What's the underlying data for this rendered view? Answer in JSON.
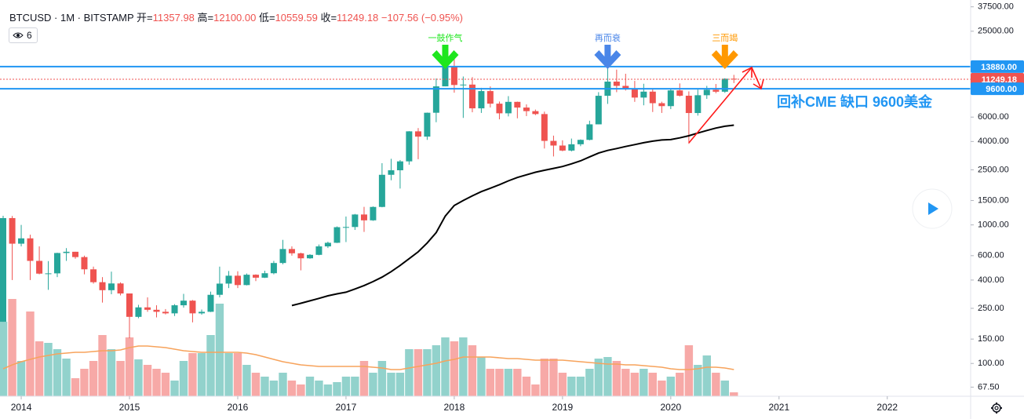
{
  "chart_data": {
    "type": "candlestick",
    "title": "BTCUSD · 1M · BITSTAMP",
    "ohlc": [
      {
        "label": "开=",
        "value": "11357.98"
      },
      {
        "label": "高=",
        "value": "12100.00"
      },
      {
        "label": "低=",
        "value": "10559.59"
      },
      {
        "label": "收=",
        "value": "11249.18"
      },
      {
        "label": "",
        "value": "−107.56 (−0.95%)"
      }
    ],
    "indicator_count": "6",
    "log_scale": true,
    "grid": false,
    "up_color": "#26a69a",
    "down_color": "#ef5350",
    "xlim": [
      2013.804,
      2022.77
    ],
    "xticks": [
      2014,
      2015,
      2016,
      2017,
      2018,
      2019,
      2020,
      2021,
      2022
    ],
    "ylim": [
      58,
      42000
    ],
    "yticks": [
      {
        "value": 37500,
        "label": "37500.00"
      },
      {
        "value": 25000,
        "label": "25000.00"
      },
      {
        "value": 6000,
        "label": "6000.00"
      },
      {
        "value": 4000,
        "label": "4000.00"
      },
      {
        "value": 2500,
        "label": "2500.00"
      },
      {
        "value": 1500,
        "label": "1500.00"
      },
      {
        "value": 1000,
        "label": "1000.00"
      },
      {
        "value": 600,
        "label": "600.00"
      },
      {
        "value": 400,
        "label": "400.00"
      },
      {
        "value": 250,
        "label": "250.00"
      },
      {
        "value": 150,
        "label": "150.00"
      },
      {
        "value": 100,
        "label": "100.00"
      },
      {
        "value": 67.5,
        "label": "67.50"
      }
    ],
    "x": [
      2013.833,
      2013.917,
      2014,
      2014.083,
      2014.167,
      2014.25,
      2014.333,
      2014.417,
      2014.5,
      2014.583,
      2014.667,
      2014.75,
      2014.833,
      2014.917,
      2015,
      2015.083,
      2015.167,
      2015.25,
      2015.333,
      2015.417,
      2015.5,
      2015.583,
      2015.667,
      2015.75,
      2015.833,
      2015.917,
      2016,
      2016.083,
      2016.167,
      2016.25,
      2016.333,
      2016.417,
      2016.5,
      2016.583,
      2016.667,
      2016.75,
      2016.833,
      2016.917,
      2017,
      2017.083,
      2017.167,
      2017.25,
      2017.333,
      2017.417,
      2017.5,
      2017.583,
      2017.667,
      2017.75,
      2017.833,
      2017.917,
      2018,
      2018.083,
      2018.167,
      2018.25,
      2018.333,
      2018.417,
      2018.5,
      2018.583,
      2018.667,
      2018.75,
      2018.833,
      2018.917,
      2019,
      2019.083,
      2019.167,
      2019.25,
      2019.333,
      2019.417,
      2019.5,
      2019.583,
      2019.667,
      2019.75,
      2019.833,
      2019.917,
      2020,
      2020.083,
      2020.167,
      2020.25,
      2020.333,
      2020.417,
      2020.5,
      2020.583
    ],
    "open": [
      200,
      1120,
      732,
      800,
      550,
      445,
      447,
      627,
      640,
      586,
      478,
      386,
      338,
      378,
      320,
      217,
      254,
      244,
      236,
      230,
      263,
      284,
      230,
      236,
      313,
      377,
      430,
      368,
      437,
      416,
      448,
      531,
      670,
      624,
      574,
      608,
      700,
      743,
      963,
      966,
      1189,
      1079,
      1348,
      2300,
      2480,
      2875,
      4735,
      4338,
      6450,
      10000,
      13860,
      10230,
      10300,
      6940,
      9245,
      7500,
      6390,
      7730,
      7030,
      6625,
      6310,
      4040,
      3740,
      3440,
      3820,
      4110,
      5320,
      8550,
      10820,
      10080,
      9600,
      8300,
      9160,
      7560,
      7200,
      9350,
      8560,
      6420,
      8630,
      9450,
      9150,
      11357.98
    ],
    "high": [
      1163,
      1160,
      1000,
      850,
      700,
      548,
      630,
      680,
      640,
      600,
      500,
      420,
      460,
      385,
      320,
      265,
      300,
      263,
      247,
      268,
      318,
      287,
      245,
      330,
      500,
      465,
      463,
      446,
      440,
      467,
      550,
      780,
      700,
      630,
      615,
      722,
      757,
      975,
      1150,
      1200,
      1350,
      1360,
      2790,
      3000,
      2940,
      4750,
      5000,
      6470,
      11400,
      19666,
      17200,
      11780,
      11660,
      9760,
      9990,
      7770,
      8500,
      7760,
      7410,
      6800,
      6570,
      4410,
      4080,
      4200,
      4140,
      5650,
      9080,
      13880,
      13200,
      12330,
      10950,
      10440,
      9510,
      7750,
      9570,
      10500,
      9200,
      9480,
      10080,
      10400,
      11440,
      12100
    ],
    "low": [
      200,
      400,
      700,
      400,
      440,
      340,
      420,
      550,
      570,
      440,
      377,
      275,
      316,
      310,
      152,
      212,
      236,
      215,
      226,
      220,
      253,
      198,
      225,
      235,
      300,
      350,
      350,
      366,
      393,
      414,
      440,
      520,
      600,
      470,
      570,
      604,
      681,
      740,
      752,
      920,
      890,
      1070,
      1340,
      2100,
      1830,
      2720,
      2980,
      4110,
      5510,
      10000,
      9000,
      5920,
      6500,
      6430,
      7040,
      5780,
      6070,
      5880,
      6100,
      6200,
      3560,
      3120,
      3400,
      3390,
      3700,
      4080,
      5320,
      7470,
      9080,
      9330,
      7730,
      7300,
      6530,
      6430,
      6850,
      8450,
      3850,
      6150,
      8120,
      8920,
      8980,
      10559.59
    ],
    "close": [
      1120,
      732,
      800,
      550,
      445,
      447,
      627,
      640,
      586,
      478,
      386,
      338,
      378,
      320,
      217,
      254,
      244,
      236,
      230,
      263,
      284,
      230,
      236,
      313,
      377,
      430,
      368,
      437,
      416,
      448,
      531,
      670,
      624,
      574,
      608,
      700,
      743,
      963,
      966,
      1189,
      1079,
      1348,
      2300,
      2480,
      2875,
      4735,
      4338,
      6450,
      10000,
      13860,
      10230,
      10300,
      6940,
      9245,
      7500,
      6390,
      7730,
      7030,
      6625,
      6310,
      4040,
      3740,
      3440,
      3820,
      4110,
      5320,
      8550,
      10820,
      10080,
      9600,
      8300,
      9160,
      7560,
      7200,
      9350,
      8560,
      6420,
      8630,
      9450,
      9150,
      11360,
      11249.18
    ],
    "volume_lim": [
      0,
      505
    ],
    "volume": [
      95,
      124,
      45,
      108,
      70,
      68,
      60,
      48,
      23,
      35,
      45,
      78,
      60,
      45,
      75,
      47,
      40,
      35,
      30,
      20,
      45,
      55,
      55,
      78,
      118,
      55,
      55,
      40,
      30,
      25,
      20,
      30,
      20,
      15,
      25,
      20,
      15,
      18,
      25,
      25,
      45,
      30,
      45,
      30,
      30,
      60,
      60,
      60,
      65,
      75,
      70,
      75,
      65,
      50,
      35,
      35,
      35,
      35,
      25,
      15,
      48,
      48,
      30,
      25,
      25,
      35,
      48,
      50,
      45,
      35,
      30,
      35,
      30,
      20,
      25,
      30,
      65,
      40,
      52,
      30,
      20,
      5
    ],
    "volume_ma": {
      "color": "#f7a35c",
      "values": [
        35,
        40,
        44,
        47,
        50,
        52,
        54,
        55,
        56,
        56,
        57,
        58,
        58,
        59,
        62,
        64,
        64,
        63,
        62,
        60,
        58,
        57,
        56,
        56,
        56,
        56,
        56,
        55,
        53,
        50,
        47,
        44,
        42,
        40,
        39,
        38,
        38,
        38,
        38,
        38,
        38,
        37,
        36,
        34,
        34,
        36,
        38,
        40,
        42,
        45,
        47,
        50,
        50,
        50,
        50,
        49,
        48,
        48,
        47,
        46,
        46,
        46,
        46,
        45,
        44,
        43,
        42,
        41,
        41,
        40,
        40,
        39,
        38,
        37,
        35,
        34,
        34,
        35,
        37,
        37,
        36,
        34
      ]
    },
    "ma": {
      "color": "#000000",
      "values": [
        null,
        null,
        null,
        null,
        null,
        null,
        null,
        null,
        null,
        null,
        null,
        null,
        null,
        null,
        null,
        null,
        null,
        null,
        null,
        null,
        null,
        null,
        null,
        null,
        null,
        null,
        null,
        null,
        null,
        null,
        null,
        null,
        262,
        272,
        283,
        295,
        308,
        318,
        327,
        345,
        365,
        390,
        420,
        460,
        510,
        570,
        640,
        740,
        880,
        1160,
        1380,
        1500,
        1620,
        1740,
        1840,
        1950,
        2080,
        2200,
        2300,
        2400,
        2480,
        2560,
        2640,
        2760,
        2900,
        3100,
        3300,
        3450,
        3560,
        3680,
        3800,
        3920,
        4020,
        4100,
        4130,
        4250,
        4400,
        4600,
        4800,
        5000,
        5150,
        5250
      ]
    },
    "levels": [
      {
        "value": 13880,
        "label": "13880.00",
        "color": "#2196f3",
        "style": "solid"
      },
      {
        "value": 11249.18,
        "label": "11249.18",
        "color": "#ef5350",
        "style": "dotted"
      },
      {
        "value": 9600,
        "label": "9600.00",
        "color": "#2196f3",
        "style": "solid"
      }
    ],
    "annotations": [
      {
        "text": "一鼓作气",
        "x": 2017.917,
        "color": "#1ee61e"
      },
      {
        "text": "再而衰",
        "x": 2019.417,
        "color": "#4a86e8"
      },
      {
        "text": "三而竭",
        "x": 2020.5,
        "color": "#ff9800"
      }
    ],
    "callout": {
      "text": "回补CME 缺口 9600美金",
      "color": "#2196f3"
    }
  }
}
